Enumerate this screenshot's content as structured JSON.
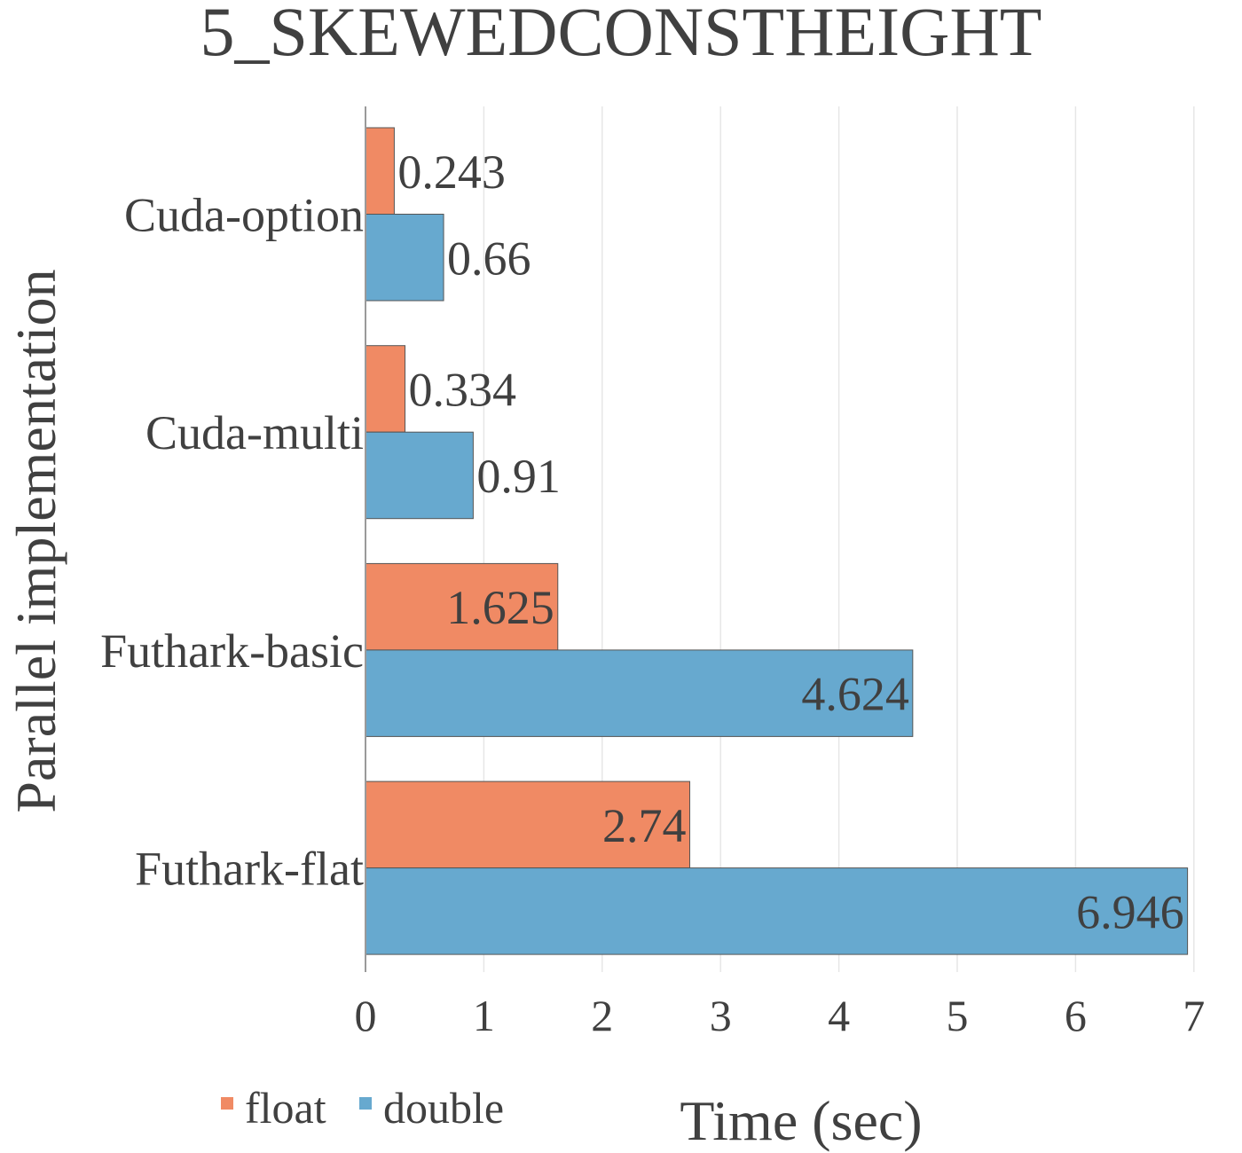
{
  "chart_data": {
    "type": "bar",
    "orientation": "horizontal",
    "title": "5_SKEWEDCONSTHEIGHT",
    "xlabel": "Time (sec)",
    "ylabel": "Parallel implementation",
    "categories": [
      "Cuda-option",
      "Cuda-multi",
      "Futhark-basic",
      "Futhark-flat"
    ],
    "series": [
      {
        "name": "float",
        "color": "#F08A64",
        "values": [
          0.243,
          0.334,
          1.625,
          2.74
        ],
        "labels": [
          "0.243",
          "0.334",
          "1.625",
          "2.74"
        ]
      },
      {
        "name": "double",
        "color": "#67A9CF",
        "values": [
          0.66,
          0.91,
          4.624,
          6.946
        ],
        "labels": [
          "0.66",
          "0.91",
          "4.624",
          "6.946"
        ]
      }
    ],
    "xlim": [
      0,
      7
    ],
    "xticks": [
      "0",
      "1",
      "2",
      "3",
      "4",
      "5",
      "6",
      "7"
    ],
    "grid": "vertical",
    "legend": "bottom-left"
  }
}
